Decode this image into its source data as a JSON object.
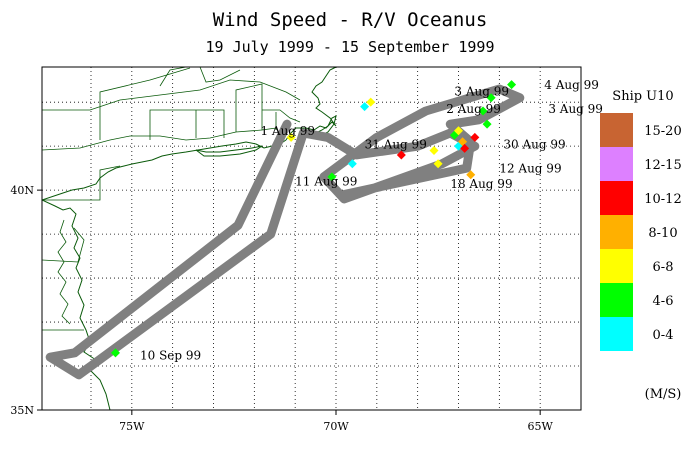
{
  "title": "Wind Speed - R/V Oceanus",
  "subtitle": "19 July 1999 - 15 September 1999",
  "axes": {
    "lon_min": -77.2,
    "lon_max": -64.0,
    "lat_min": 35.0,
    "lat_max": 42.8,
    "x_ticks": [
      {
        "value": -75,
        "label": "75W"
      },
      {
        "value": -70,
        "label": "70W"
      },
      {
        "value": -65,
        "label": "65W"
      }
    ],
    "y_ticks": [
      {
        "value": 40,
        "label": "40N"
      },
      {
        "value": 35,
        "label": "35N"
      }
    ],
    "grid_lon": [
      -76,
      -75,
      -74,
      -73,
      -72,
      -71,
      -70,
      -69,
      -68,
      -67,
      -66,
      -65
    ],
    "grid_lat": [
      36,
      37,
      38,
      39,
      40,
      41,
      42
    ]
  },
  "track_color": "#808080",
  "coast_color": "#0a5a0a",
  "legend": {
    "title": "Ship U10",
    "units": "(M/S)",
    "bins": [
      {
        "label": "15-20",
        "color": "#c86432"
      },
      {
        "label": "12-15",
        "color": "#dd80ff"
      },
      {
        "label": "10-12",
        "color": "#ff0000"
      },
      {
        "label": "8-10",
        "color": "#ffb000"
      },
      {
        "label": "6-8",
        "color": "#ffff00"
      },
      {
        "label": "4-6",
        "color": "#00ff00"
      },
      {
        "label": "0-4",
        "color": "#00ffff"
      }
    ]
  },
  "track": [
    {
      "lon": -71.2,
      "lat": 41.5
    },
    {
      "lon": -72.4,
      "lat": 39.2
    },
    {
      "lon": -76.4,
      "lat": 36.3
    },
    {
      "lon": -77.0,
      "lat": 36.2
    },
    {
      "lon": -76.3,
      "lat": 35.8
    },
    {
      "lon": -76.0,
      "lat": 36.0
    },
    {
      "lon": -71.6,
      "lat": 39.0
    },
    {
      "lon": -70.8,
      "lat": 41.3
    },
    {
      "lon": -70.2,
      "lat": 41.2
    },
    {
      "lon": -69.5,
      "lat": 40.8
    },
    {
      "lon": -68.0,
      "lat": 41.0
    },
    {
      "lon": -67.2,
      "lat": 41.3
    },
    {
      "lon": -66.6,
      "lat": 41.0
    },
    {
      "lon": -67.4,
      "lat": 40.6
    },
    {
      "lon": -69.8,
      "lat": 39.8
    },
    {
      "lon": -70.3,
      "lat": 40.3
    },
    {
      "lon": -69.0,
      "lat": 41.2
    },
    {
      "lon": -67.8,
      "lat": 41.8
    },
    {
      "lon": -66.0,
      "lat": 42.3
    },
    {
      "lon": -65.5,
      "lat": 42.1
    },
    {
      "lon": -66.5,
      "lat": 41.6
    },
    {
      "lon": -67.2,
      "lat": 41.5
    },
    {
      "lon": -66.7,
      "lat": 41.1
    },
    {
      "lon": -66.8,
      "lat": 40.5
    },
    {
      "lon": -69.8,
      "lat": 39.9
    }
  ],
  "observations": [
    {
      "lon": -75.4,
      "lat": 36.3,
      "bin": "4-6"
    },
    {
      "lon": -71.1,
      "lat": 41.2,
      "bin": "6-8"
    },
    {
      "lon": -70.1,
      "lat": 40.3,
      "bin": "4-6"
    },
    {
      "lon": -69.6,
      "lat": 40.6,
      "bin": "0-4"
    },
    {
      "lon": -69.3,
      "lat": 41.9,
      "bin": "0-4"
    },
    {
      "lon": -69.15,
      "lat": 42.0,
      "bin": "6-8"
    },
    {
      "lon": -68.4,
      "lat": 40.8,
      "bin": "10-12"
    },
    {
      "lon": -67.6,
      "lat": 40.9,
      "bin": "6-8"
    },
    {
      "lon": -67.0,
      "lat": 41.0,
      "bin": "0-4"
    },
    {
      "lon": -66.9,
      "lat": 41.1,
      "bin": "8-10"
    },
    {
      "lon": -66.85,
      "lat": 40.95,
      "bin": "10-12"
    },
    {
      "lon": -67.1,
      "lat": 41.25,
      "bin": "4-6"
    },
    {
      "lon": -67.0,
      "lat": 41.35,
      "bin": "6-8"
    },
    {
      "lon": -66.6,
      "lat": 41.2,
      "bin": "10-12"
    },
    {
      "lon": -66.3,
      "lat": 41.5,
      "bin": "4-6"
    },
    {
      "lon": -66.4,
      "lat": 41.8,
      "bin": "4-6"
    },
    {
      "lon": -66.2,
      "lat": 42.1,
      "bin": "4-6"
    },
    {
      "lon": -65.7,
      "lat": 42.4,
      "bin": "4-6"
    },
    {
      "lon": -67.5,
      "lat": 40.6,
      "bin": "6-8"
    },
    {
      "lon": -66.7,
      "lat": 40.35,
      "bin": "8-10"
    }
  ],
  "labels": [
    {
      "text": "1 Aug 99",
      "lon": -71.85,
      "lat": 41.25
    },
    {
      "text": "31 Aug 99",
      "lon": -69.3,
      "lat": 40.95
    },
    {
      "text": "11 Aug 99",
      "lon": -71.0,
      "lat": 40.1
    },
    {
      "text": "18 Aug 99",
      "lon": -67.2,
      "lat": 40.05
    },
    {
      "text": "12 Aug 99",
      "lon": -66.0,
      "lat": 40.4
    },
    {
      "text": "30 Aug 99",
      "lon": -65.9,
      "lat": 40.95
    },
    {
      "text": "3 Aug 99",
      "lon": -67.1,
      "lat": 42.15
    },
    {
      "text": "2 Aug 99",
      "lon": -67.3,
      "lat": 41.75
    },
    {
      "text": "3 Aug 99",
      "lon": -64.8,
      "lat": 41.75
    },
    {
      "text": "4 Aug 99",
      "lon": -64.9,
      "lat": 42.3
    },
    {
      "text": "10 Sep 99",
      "lon": -74.8,
      "lat": 36.15
    }
  ]
}
